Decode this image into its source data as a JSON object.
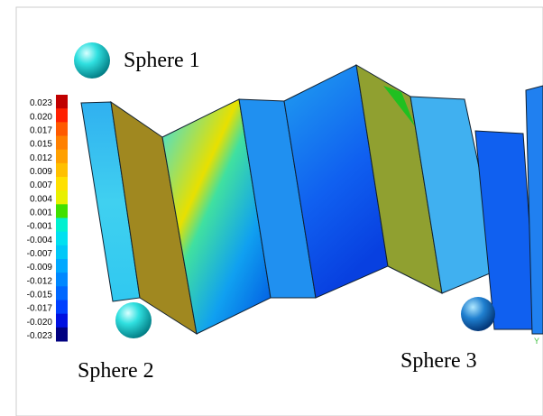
{
  "labels": {
    "sphere_1": "Sphere 1",
    "sphere_2": "Sphere 2",
    "sphere_3": "Sphere 3",
    "axis": "Y"
  },
  "legend": {
    "items": [
      {
        "label": "0.023",
        "color": "#c00000"
      },
      {
        "label": "0.020",
        "color": "#ff2000"
      },
      {
        "label": "0.017",
        "color": "#ff5a00"
      },
      {
        "label": "0.015",
        "color": "#ff8000"
      },
      {
        "label": "0.012",
        "color": "#ffa000"
      },
      {
        "label": "0.009",
        "color": "#ffc000"
      },
      {
        "label": "0.007",
        "color": "#ffe000"
      },
      {
        "label": "0.004",
        "color": "#e8f000"
      },
      {
        "label": "0.001",
        "color": "#40e000"
      },
      {
        "label": "-0.001",
        "color": "#00f0d0"
      },
      {
        "label": "-0.004",
        "color": "#00e0f0"
      },
      {
        "label": "-0.007",
        "color": "#00c8f8"
      },
      {
        "label": "-0.009",
        "color": "#00a8ff"
      },
      {
        "label": "-0.012",
        "color": "#0088ff"
      },
      {
        "label": "-0.015",
        "color": "#0068ff"
      },
      {
        "label": "-0.017",
        "color": "#0040ff"
      },
      {
        "label": "-0.020",
        "color": "#0010e0"
      },
      {
        "label": "-0.023",
        "color": "#000080"
      }
    ]
  }
}
